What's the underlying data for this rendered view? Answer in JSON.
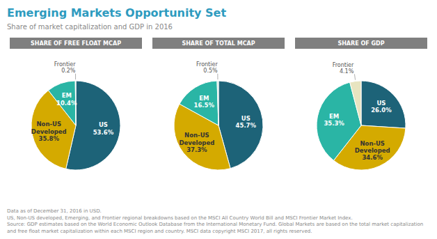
{
  "title": "Emerging Markets Opportunity Set",
  "subtitle": "Share of market capitalization and GDP in 2016",
  "footer": "Data as of December 31, 2016 in USD.\nUS, Non-US developed, Emerging, and Frontier regional breakdowns based on the MSCI All Country World Bill and MSCI Frontier Market Index.\nSource: GDP estimates based on the World Economic Outlook Database from the International Monetary Fund. Global Markets are based on the total market capitalization and free float market capitalization within each MSCI region and country. MSCI data copyright MSCI 2017, all rights reserved.",
  "chart_data": [
    {
      "type": "pie",
      "title": "SHARE OF FREE FLOAT MCAP",
      "categories": [
        "US",
        "Non-US\nDeveloped",
        "EM",
        "Frontier"
      ],
      "values": [
        53.6,
        35.8,
        10.4,
        0.2
      ],
      "value_labels": [
        "53.6%",
        "35.8%",
        "10.4%",
        "0.2%"
      ],
      "colors": [
        "#1d6378",
        "#d4aa00",
        "#2ab5a5",
        "#c8ddd6"
      ],
      "data_labels": true
    },
    {
      "type": "pie",
      "title": "SHARE OF TOTAL MCAP",
      "categories": [
        "US",
        "Non-US\nDeveloped",
        "EM",
        "Frontier"
      ],
      "values": [
        45.7,
        37.3,
        16.5,
        0.5
      ],
      "value_labels": [
        "45.7%",
        "37.3%",
        "16.5%",
        "0.5%"
      ],
      "colors": [
        "#1d6378",
        "#d4aa00",
        "#2ab5a5",
        "#c8ddd6"
      ],
      "data_labels": true
    },
    {
      "type": "pie",
      "title": "SHARE OF GDP",
      "categories": [
        "US",
        "Non-US\nDeveloped",
        "EM",
        "Frontier"
      ],
      "values": [
        26.0,
        34.6,
        35.3,
        4.1
      ],
      "value_labels": [
        "26.0%",
        "34.6%",
        "35.3%",
        "4.1%"
      ],
      "colors": [
        "#1d6378",
        "#d4aa00",
        "#2ab5a5",
        "#e8e4c0"
      ],
      "data_labels": true
    }
  ]
}
